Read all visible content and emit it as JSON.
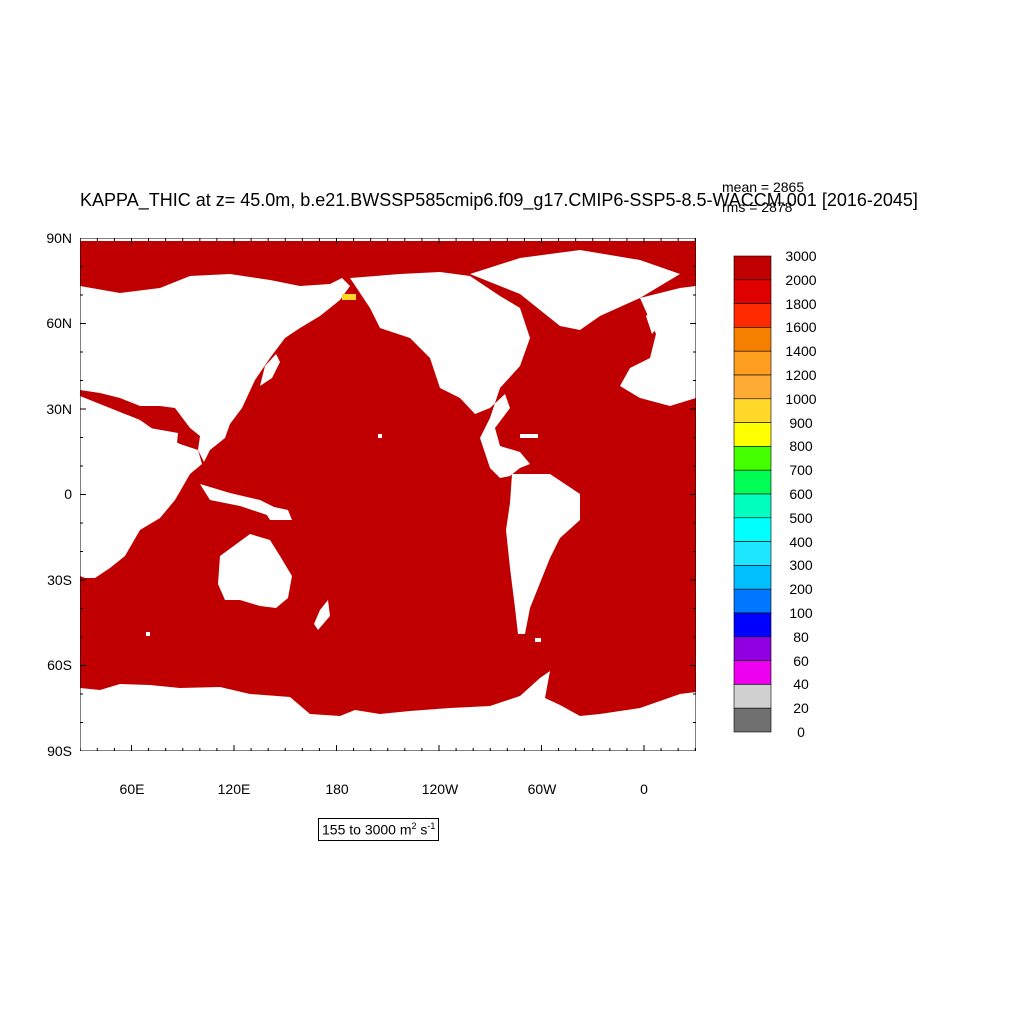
{
  "title": "KAPPA_THIC at z=  45.0m, b.e21.BWSSP585cmip6.f09_g17.CMIP6-SSP5-8.5-WACCM.001 [2016-2045]",
  "stats": {
    "mean": "mean = 2865",
    "rms": "rms = 2878"
  },
  "units": {
    "prefix": "155 to 3000 m",
    "sup1": "2",
    "mid": " s",
    "sup2": "-1"
  },
  "map": {
    "lat_labels": [
      "90N",
      "60N",
      "30N",
      "0",
      "30S",
      "60S",
      "90S"
    ],
    "lon_labels": [
      "60E",
      "120E",
      "180",
      "120W",
      "60W",
      "0"
    ],
    "ocean_color": "#c00000",
    "land_color": "#ffffff"
  },
  "colorbar": {
    "labels": [
      "3000",
      "2000",
      "1800",
      "1600",
      "1400",
      "1200",
      "1000",
      "900",
      "800",
      "700",
      "600",
      "500",
      "400",
      "300",
      "200",
      "100",
      "80",
      "60",
      "40",
      "20",
      "0"
    ],
    "colors": [
      "#c00000",
      "#e00000",
      "#ff2a00",
      "#f58000",
      "#ff9f20",
      "#ffaa33",
      "#ffd829",
      "#ffff00",
      "#44ff00",
      "#00ff55",
      "#00ffbf",
      "#00ffff",
      "#1ee6ff",
      "#00bfff",
      "#0077ff",
      "#0000ff",
      "#9000e0",
      "#ee00ee",
      "#d0d0d0",
      "#707070"
    ]
  }
}
